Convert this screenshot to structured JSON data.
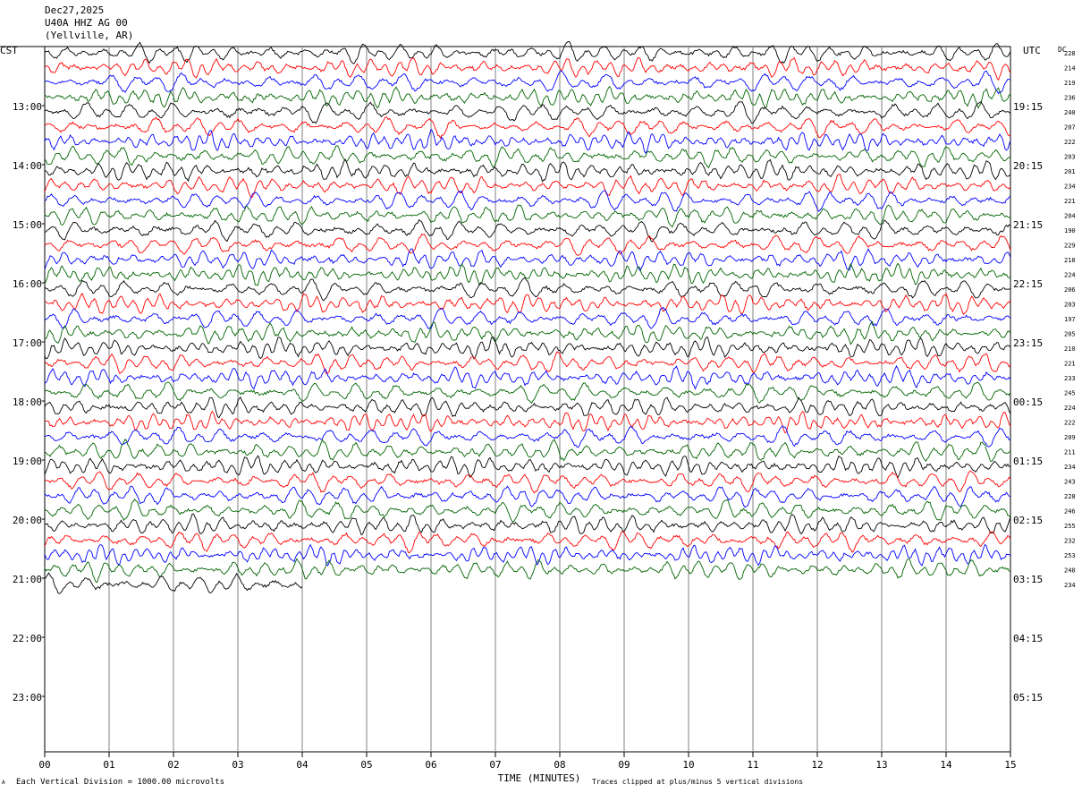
{
  "header": {
    "date": "Dec27,2025",
    "station": "U40A HHZ AG 00",
    "location": "(Yellville, AR)"
  },
  "left_tz": "CST",
  "right_tz": "UTC",
  "dc_label": "DC",
  "footer": {
    "scale": "Each Vertical Division = 1000.00 microvolts",
    "clip": "Traces clipped at plus/minus 5 vertical divisions",
    "corner_mark": "A"
  },
  "chart_data": {
    "type": "line",
    "title": "",
    "xlabel": "TIME (MINUTES)",
    "ylabel": "",
    "xlim": [
      0,
      15
    ],
    "x_ticks": [
      "00",
      "01",
      "02",
      "03",
      "04",
      "05",
      "06",
      "07",
      "08",
      "09",
      "10",
      "11",
      "12",
      "13",
      "14",
      "15"
    ],
    "hour_rows": 11,
    "traces_per_hour": 4,
    "left_hours": [
      "13:00",
      "14:00",
      "15:00",
      "16:00",
      "17:00",
      "18:00",
      "19:00",
      "20:00",
      "21:00",
      "22:00",
      "23:00"
    ],
    "right_hours": [
      "19:15",
      "20:15",
      "21:15",
      "22:15",
      "23:15",
      "00:15",
      "01:15",
      "02:15",
      "03:15",
      "04:15",
      "05:15"
    ],
    "trace_colors": [
      "#000000",
      "#ff0000",
      "#0000ff",
      "#006400"
    ],
    "dc_offsets": [
      228,
      214,
      219,
      236,
      240,
      207,
      222,
      203,
      201,
      234,
      221,
      204,
      190,
      229,
      218,
      224,
      206,
      203,
      197,
      205,
      210,
      221,
      233,
      245,
      224,
      222,
      209,
      211,
      234,
      243,
      228,
      246,
      255,
      232,
      253,
      248,
      234
    ],
    "partial_last_trace_minutes": 4.0,
    "grid": true
  }
}
